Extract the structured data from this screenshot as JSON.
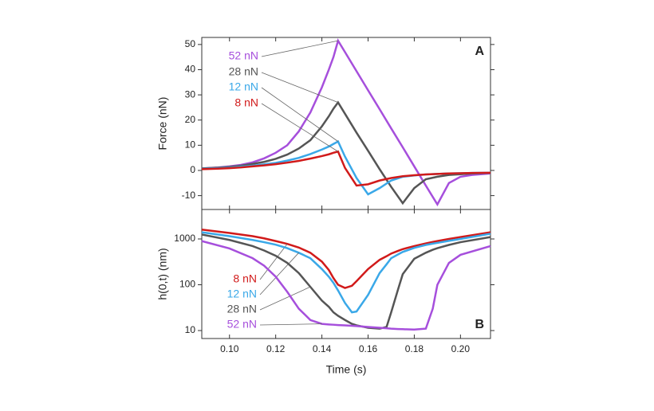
{
  "chart_data": [
    {
      "type": "line",
      "ylabel": "Force (nN)",
      "panel_label": "A",
      "xlim": [
        0.088,
        0.213
      ],
      "xticks": [
        {
          "value": 0.1,
          "label": "0.10"
        },
        0.12,
        0.14,
        0.16,
        0.18,
        {
          "value": 0.2,
          "label": "0.20"
        }
      ],
      "ylim": [
        -15.5,
        52.8
      ],
      "yticks": [
        -10,
        0,
        10,
        20,
        30,
        40,
        50
      ],
      "x": [
        0.088,
        0.095,
        0.1,
        0.105,
        0.11,
        0.115,
        0.12,
        0.125,
        0.13,
        0.135,
        0.14,
        0.143,
        0.145,
        0.147,
        0.15,
        0.155,
        0.16,
        0.165,
        0.17,
        0.175,
        0.18,
        0.185,
        0.19,
        0.195,
        0.2,
        0.205,
        0.213
      ],
      "series": [
        {
          "name": "52 nN",
          "color": "#a64fdc",
          "values": [
            0.8,
            1.2,
            1.6,
            2.2,
            3.2,
            4.8,
            7,
            10,
            15.5,
            23,
            33,
            40,
            45,
            51.5,
            47,
            39.4,
            31.8,
            24.3,
            16.7,
            9.2,
            1.6,
            -6,
            -13.5,
            -5,
            -2.5,
            -1.8,
            -1.2
          ]
        },
        {
          "name": "28 nN",
          "color": "#555555",
          "values": [
            0.8,
            1.1,
            1.4,
            1.9,
            2.6,
            3.4,
            4.6,
            6.3,
            8.7,
            12,
            17.5,
            21.5,
            24.5,
            27,
            22.5,
            15,
            7.8,
            0.5,
            -6.5,
            -13,
            -7,
            -3.5,
            -2.5,
            -1.8,
            -1.5,
            -1.2,
            -1
          ]
        },
        {
          "name": "12 nN",
          "color": "#3aa8e8",
          "values": [
            0.6,
            0.9,
            1.1,
            1.5,
            1.9,
            2.4,
            3,
            3.9,
            5,
            6.5,
            8.3,
            9.5,
            10.5,
            11.5,
            5.5,
            -3,
            -9.5,
            -7,
            -4,
            -2.5,
            -2,
            -1.6,
            -1.4,
            -1.2,
            -1.1,
            -1,
            -0.9
          ]
        },
        {
          "name": "8 nN",
          "color": "#d11a1a",
          "values": [
            0.5,
            0.7,
            0.9,
            1.2,
            1.6,
            2,
            2.5,
            3.1,
            3.8,
            4.7,
            5.7,
            6.4,
            7,
            7.5,
            1,
            -6,
            -5.5,
            -4,
            -3,
            -2.3,
            -1.9,
            -1.6,
            -1.4,
            -1.2,
            -1.1,
            -1,
            -0.9
          ]
        }
      ]
    },
    {
      "type": "line",
      "ylabel": "h(0,t) (nm)",
      "xlabel": "Time (s)",
      "panel_label": "B",
      "log_scale": true,
      "xlim": [
        0.088,
        0.213
      ],
      "xticks": [
        {
          "value": 0.1,
          "label": "0.10"
        },
        0.12,
        0.14,
        0.16,
        0.18,
        {
          "value": 0.2,
          "label": "0.20"
        }
      ],
      "ylim": [
        6.7,
        4400
      ],
      "yticks": [
        10,
        100,
        1000
      ],
      "x": [
        0.088,
        0.1,
        0.11,
        0.115,
        0.12,
        0.125,
        0.13,
        0.135,
        0.14,
        0.143,
        0.145,
        0.147,
        0.15,
        0.153,
        0.155,
        0.16,
        0.165,
        0.168,
        0.17,
        0.173,
        0.175,
        0.18,
        0.185,
        0.188,
        0.19,
        0.195,
        0.2,
        0.213
      ],
      "series": [
        {
          "name": "8 nN",
          "color": "#d11a1a",
          "values": [
            1600,
            1350,
            1150,
            1030,
            900,
            780,
            650,
            500,
            320,
            210,
            140,
            100,
            85,
            95,
            120,
            220,
            350,
            420,
            480,
            550,
            600,
            700,
            800,
            860,
            900,
            1000,
            1100,
            1400
          ]
        },
        {
          "name": "12 nN",
          "color": "#3aa8e8",
          "values": [
            1400,
            1150,
            950,
            850,
            750,
            630,
            500,
            380,
            220,
            150,
            110,
            75,
            40,
            25,
            26,
            60,
            180,
            280,
            380,
            460,
            520,
            640,
            740,
            790,
            820,
            910,
            1000,
            1300
          ]
        },
        {
          "name": "28 nN",
          "color": "#555555",
          "values": [
            1250,
            950,
            700,
            560,
            430,
            300,
            180,
            90,
            45,
            33,
            25,
            21,
            17,
            14,
            13,
            11.5,
            11,
            12,
            25,
            80,
            170,
            370,
            500,
            580,
            630,
            740,
            850,
            1100
          ]
        },
        {
          "name": "52 nN",
          "color": "#a64fdc",
          "values": [
            900,
            620,
            380,
            260,
            150,
            70,
            30,
            17,
            14,
            13.6,
            13.4,
            13.2,
            13,
            12.7,
            12.5,
            12,
            11.5,
            11.2,
            11,
            10.8,
            10.7,
            10.5,
            11,
            30,
            100,
            300,
            450,
            700
          ]
        }
      ]
    }
  ]
}
